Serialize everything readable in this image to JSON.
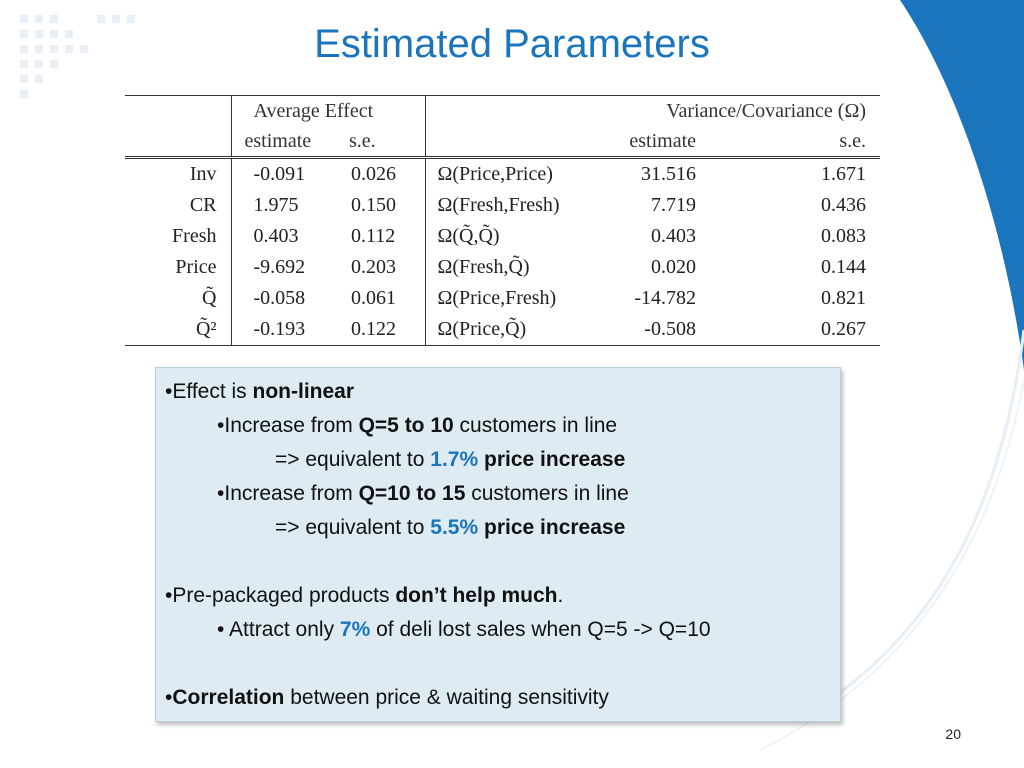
{
  "slide": {
    "title": "Estimated Parameters",
    "page_number": "20",
    "accent_color": "#1b75bc"
  },
  "table": {
    "group_headers": [
      "Average Effect",
      "Variance/Covariance (Ω)"
    ],
    "sub_headers": [
      "estimate",
      "s.e.",
      "estimate",
      "s.e."
    ],
    "rows": [
      {
        "label": "Inv",
        "ae_est": "-0.091",
        "ae_se": "0.026",
        "cov_label": "Ω(Price,Price)",
        "cov_est": "31.516",
        "cov_se": "1.671"
      },
      {
        "label": "CR",
        "ae_est": "1.975",
        "ae_se": "0.150",
        "cov_label": "Ω(Fresh,Fresh)",
        "cov_est": "7.719",
        "cov_se": "0.436"
      },
      {
        "label": "Fresh",
        "ae_est": "0.403",
        "ae_se": "0.112",
        "cov_label": "Ω(Q̃,Q̃)",
        "cov_est": "0.403",
        "cov_se": "0.083"
      },
      {
        "label": "Price",
        "ae_est": "-9.692",
        "ae_se": "0.203",
        "cov_label": "Ω(Fresh,Q̃)",
        "cov_est": "0.020",
        "cov_se": "0.144"
      },
      {
        "label": "Q̃",
        "ae_est": "-0.058",
        "ae_se": "0.061",
        "cov_label": "Ω(Price,Fresh)",
        "cov_est": "-14.782",
        "cov_se": "0.821"
      },
      {
        "label": "Q̃²",
        "ae_est": "-0.193",
        "ae_se": "0.122",
        "cov_label": "Ω(Price,Q̃)",
        "cov_est": "-0.508",
        "cov_se": "0.267"
      }
    ]
  },
  "notes": {
    "l1": {
      "bullet": "•",
      "pre": "Effect is ",
      "bold": "non-linear"
    },
    "l2": {
      "bullet": "•",
      "pre": "Increase from ",
      "bold": "Q=5 to 10",
      "post": " customers in line"
    },
    "l3": {
      "pre": "=> equivalent to ",
      "pct": "1.7%",
      "bold": " price increase"
    },
    "l4": {
      "bullet": "•",
      "pre": "Increase from ",
      "bold": "Q=10 to 15",
      "post": " customers in line"
    },
    "l5": {
      "pre": "=> equivalent to ",
      "pct": "5.5%",
      "bold": " price increase"
    },
    "l6": {
      "bullet": "•",
      "pre": "Pre-packaged products ",
      "bold": "don’t help much",
      "post": "."
    },
    "l7": {
      "bullet": "• ",
      "pre": "Attract only ",
      "pct": "7%",
      "post": " of deli lost sales when Q=5 -> Q=10"
    },
    "l8": {
      "bullet": "•",
      "bold": "Correlation",
      "post": " between price & waiting sensitivity"
    }
  }
}
